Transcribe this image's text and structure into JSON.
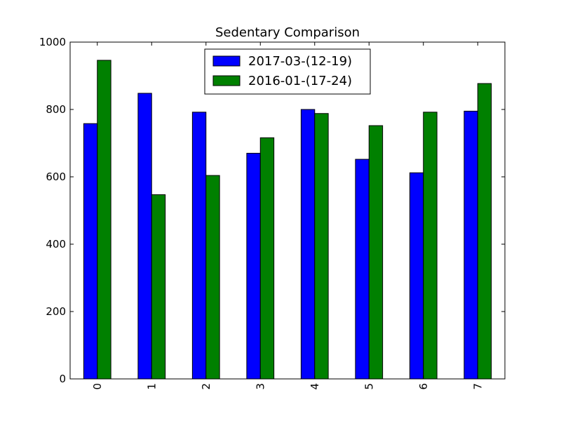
{
  "chart_data": {
    "type": "bar",
    "title": "Sedentary Comparison",
    "xlabel": "",
    "ylabel": "",
    "categories": [
      "0",
      "1",
      "2",
      "3",
      "4",
      "5",
      "6",
      "7"
    ],
    "series": [
      {
        "name": "2017-03-(12-19)",
        "color": "#0000ff",
        "values": [
          758,
          848,
          792,
          670,
          800,
          652,
          612,
          795
        ]
      },
      {
        "name": "2016-01-(17-24)",
        "color": "#008000",
        "values": [
          946,
          547,
          604,
          716,
          788,
          752,
          792,
          877
        ]
      }
    ],
    "ylim": [
      0,
      1000
    ],
    "yticks": [
      "0",
      "200",
      "400",
      "600",
      "800",
      "1000"
    ],
    "grid": false,
    "legend_position": "top-center",
    "xtick_rotation": "vertical"
  }
}
